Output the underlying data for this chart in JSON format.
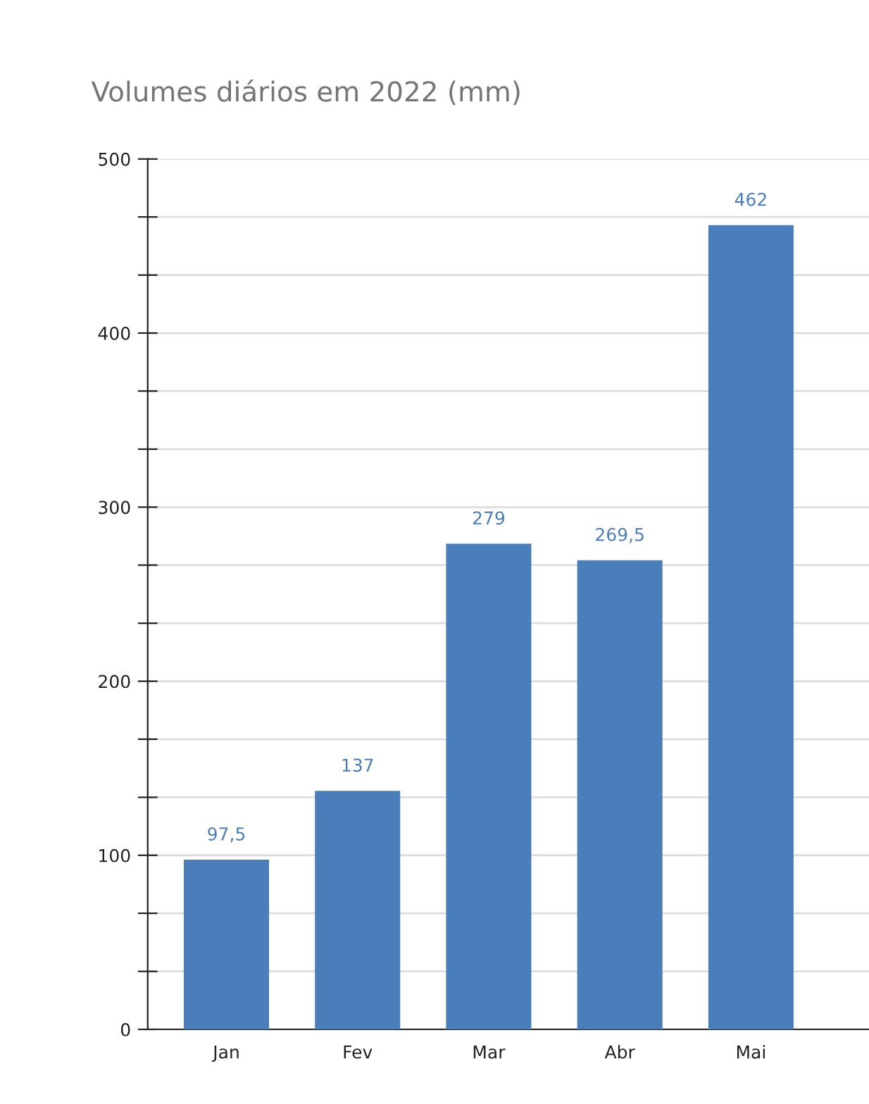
{
  "chart_data": {
    "type": "bar",
    "title": "Volumes diários em 2022 (mm)",
    "categories": [
      "Jan",
      "Fev",
      "Mar",
      "Abr",
      "Mai"
    ],
    "values": [
      97.5,
      137,
      279,
      269.5,
      462
    ],
    "value_labels": [
      "97,5",
      "137",
      "279",
      "269,5",
      "462"
    ],
    "color": "#4a7ebb",
    "ylim": [
      0,
      500
    ],
    "yticks": [
      0,
      {
        "value": 33.3,
        "label": null
      },
      {
        "value": 66.7,
        "label": null
      },
      100,
      {
        "value": 133.3,
        "label": null
      },
      {
        "value": 166.7,
        "label": null
      },
      200,
      {
        "value": 233.3,
        "label": null
      },
      {
        "value": 266.7,
        "label": null
      },
      300,
      {
        "value": 333.3,
        "label": null
      },
      {
        "value": 366.7,
        "label": null
      },
      400,
      {
        "value": 433.3,
        "label": null
      },
      {
        "value": 466.7,
        "label": null
      },
      500
    ],
    "grid": "y",
    "legend": false
  }
}
